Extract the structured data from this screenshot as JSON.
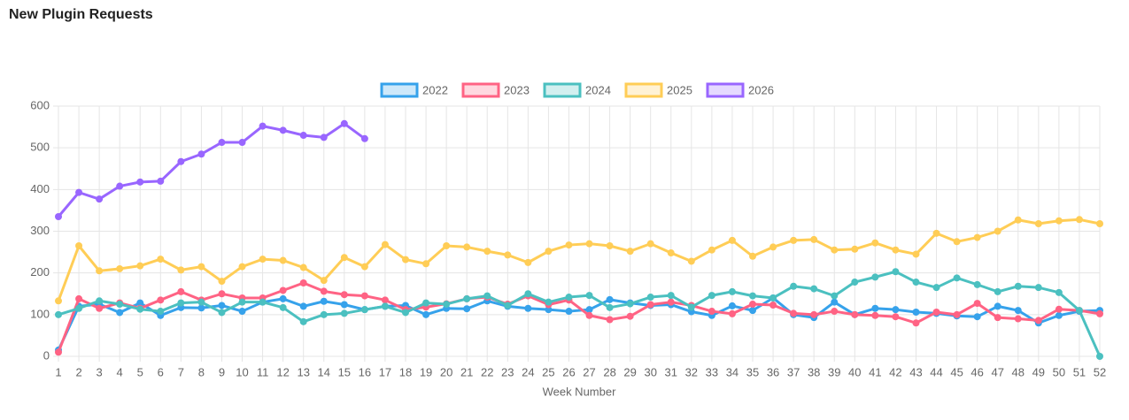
{
  "chart_data": {
    "type": "line",
    "title": "New Plugin Requests",
    "x_label": "Week Number",
    "categories": [
      "1",
      "2",
      "3",
      "4",
      "5",
      "6",
      "7",
      "8",
      "9",
      "10",
      "11",
      "12",
      "13",
      "14",
      "15",
      "16",
      "17",
      "18",
      "19",
      "20",
      "21",
      "22",
      "23",
      "24",
      "25",
      "26",
      "27",
      "28",
      "29",
      "30",
      "31",
      "32",
      "33",
      "34",
      "35",
      "36",
      "37",
      "38",
      "39",
      "40",
      "41",
      "42",
      "43",
      "44",
      "45",
      "46",
      "47",
      "48",
      "49",
      "50",
      "51",
      "52"
    ],
    "ylim": [
      0,
      600
    ],
    "yticks": [
      0,
      100,
      200,
      300,
      400,
      500,
      600
    ],
    "grid": true,
    "legend": "top",
    "series": [
      {
        "name": "2022",
        "color": "#36a2eb",
        "values": [
          15,
          120,
          125,
          105,
          128,
          98,
          117,
          116,
          122,
          108,
          130,
          138,
          120,
          132,
          124,
          112,
          120,
          122,
          100,
          115,
          114,
          133,
          120,
          115,
          112,
          108,
          112,
          136,
          128,
          122,
          124,
          107,
          98,
          121,
          110,
          140,
          100,
          93,
          130,
          100,
          115,
          112,
          106,
          103,
          97,
          95,
          120,
          110,
          80,
          98,
          108,
          110
        ]
      },
      {
        "name": "2023",
        "color": "#ff6384",
        "values": [
          10,
          138,
          115,
          128,
          115,
          135,
          155,
          135,
          150,
          140,
          140,
          158,
          176,
          156,
          148,
          145,
          135,
          112,
          118,
          126,
          138,
          142,
          125,
          145,
          124,
          135,
          98,
          88,
          96,
          124,
          130,
          122,
          108,
          102,
          125,
          123,
          103,
          100,
          108,
          100,
          98,
          95,
          80,
          106,
          100,
          127,
          93,
          90,
          86,
          113,
          110,
          102
        ]
      },
      {
        "name": "2024",
        "color": "#4bc0c0",
        "values": [
          100,
          115,
          133,
          125,
          113,
          108,
          128,
          130,
          105,
          130,
          130,
          117,
          83,
          100,
          103,
          112,
          120,
          105,
          128,
          125,
          138,
          145,
          122,
          150,
          130,
          142,
          146,
          117,
          126,
          142,
          146,
          118,
          146,
          155,
          145,
          140,
          168,
          162,
          145,
          178,
          190,
          203,
          178,
          165,
          188,
          172,
          155,
          168,
          165,
          153,
          110,
          0
        ]
      },
      {
        "name": "2025",
        "color": "#ffcd56",
        "values": [
          133,
          265,
          205,
          210,
          217,
          233,
          207,
          215,
          180,
          215,
          233,
          230,
          213,
          182,
          237,
          215,
          268,
          232,
          222,
          265,
          262,
          252,
          243,
          225,
          252,
          267,
          270,
          265,
          252,
          270,
          248,
          228,
          255,
          278,
          240,
          262,
          278,
          280,
          255,
          257,
          272,
          255,
          245,
          295,
          275,
          285,
          300,
          327,
          318,
          325,
          328,
          318
        ]
      },
      {
        "name": "2026",
        "color": "#9966ff",
        "values": [
          335,
          393,
          377,
          408,
          418,
          420,
          467,
          485,
          513,
          513,
          552,
          542,
          530,
          525,
          558,
          522,
          null,
          null,
          null,
          null,
          null,
          null,
          null,
          null,
          null,
          null,
          null,
          null,
          null,
          null,
          null,
          null,
          null,
          null,
          null,
          null,
          null,
          null,
          null,
          null,
          null,
          null,
          null,
          null,
          null,
          null,
          null,
          null,
          null,
          null,
          null,
          null
        ]
      }
    ]
  }
}
